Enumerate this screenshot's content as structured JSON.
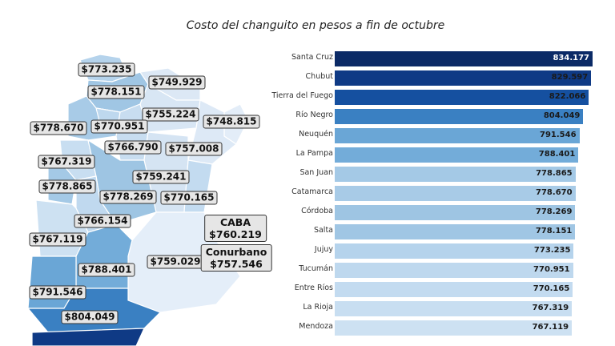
{
  "chart_data": {
    "type": "bar",
    "orientation": "horizontal",
    "title": "Costo del changuito en pesos a fin de octubre",
    "categories": [
      "Santa Cruz",
      "Chubut",
      "Tierra del Fuego",
      "Río Negro",
      "Neuquén",
      "La Pampa",
      "San Juan",
      "Catamarca",
      "Córdoba",
      "Salta",
      "Jujuy",
      "Tucumán",
      "Entre Ríos",
      "La Rioja",
      "Mendoza"
    ],
    "values": [
      834177,
      829597,
      822066,
      804049,
      791546,
      788401,
      778865,
      778670,
      778269,
      778151,
      773235,
      770951,
      770165,
      767319,
      767119
    ],
    "value_labels": [
      "834.177",
      "829.597",
      "822.066",
      "804.049",
      "791.546",
      "788.401",
      "778.865",
      "778.670",
      "778.269",
      "778.151",
      "773.235",
      "770.951",
      "770.165",
      "767.319",
      "767.119"
    ],
    "colors": [
      "#0b2a66",
      "#0f3a85",
      "#1550a0",
      "#3a80c2",
      "#6aa6d6",
      "#73acd9",
      "#a4c9e6",
      "#a8cbe7",
      "#9ec5e3",
      "#a0c6e4",
      "#b5d3ec",
      "#bed8ee",
      "#c3dbf0",
      "#c8def1",
      "#cde1f2"
    ],
    "xlim": [
      0,
      834177
    ],
    "grid": false
  },
  "map": {
    "labels": [
      "$773.235",
      "$749.929",
      "$778.151",
      "$755.224",
      "$748.815",
      "$778.670",
      "$770.951",
      "$766.790",
      "$757.008",
      "$767.319",
      "$759.241",
      "$778.865",
      "$778.269",
      "$770.165",
      "$766.154",
      "$767.119",
      "$759.029",
      "$788.401",
      "$791.546",
      "$804.049"
    ],
    "caba": {
      "name": "CABA",
      "value": "$760.219"
    },
    "conurbano": {
      "name": "Conurbano",
      "value": "$757.546"
    }
  }
}
